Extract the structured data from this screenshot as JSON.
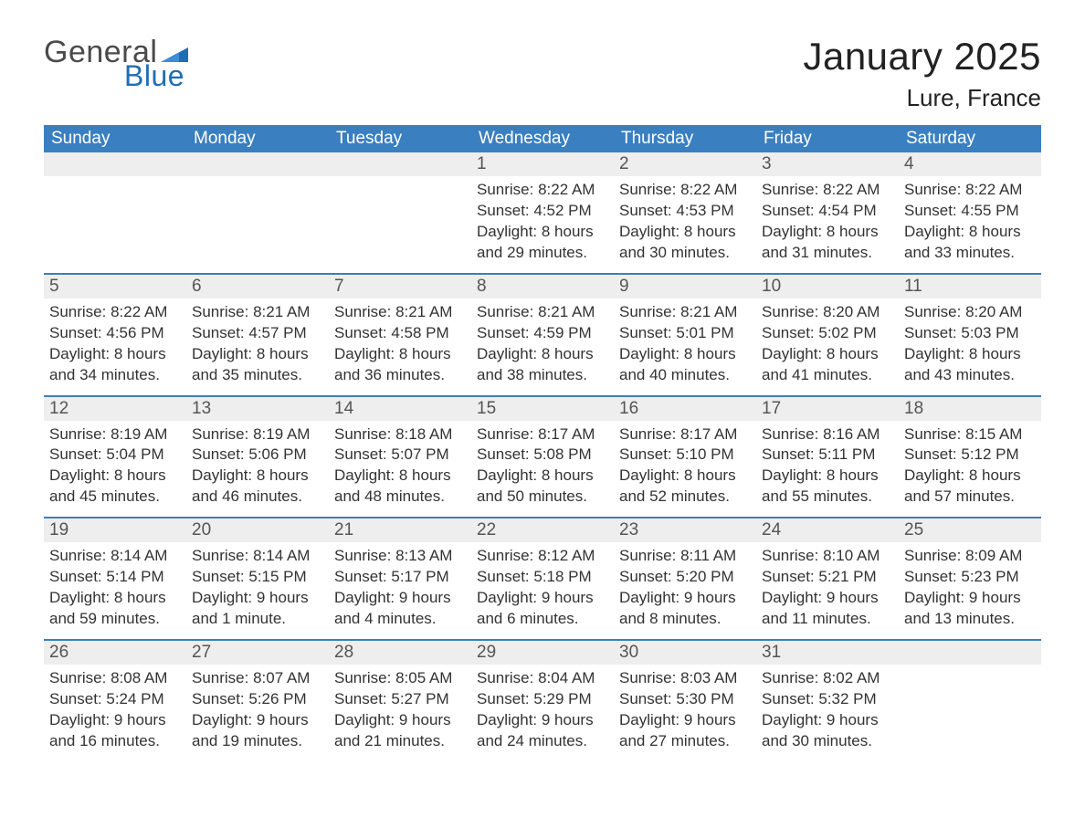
{
  "brand": {
    "word1": "General",
    "word2": "Blue"
  },
  "title": "January 2025",
  "location": "Lure, France",
  "colors": {
    "header_bg": "#3a7fc0",
    "header_text": "#ffffff",
    "daynum_bg": "#eeeeee",
    "daynum_text": "#555555",
    "body_text": "#333333",
    "week_border": "#3a7fc0",
    "brand_gray": "#4a4a4a",
    "brand_blue": "#1f6db5"
  },
  "day_headers": [
    "Sunday",
    "Monday",
    "Tuesday",
    "Wednesday",
    "Thursday",
    "Friday",
    "Saturday"
  ],
  "weeks": [
    [
      {
        "n": "",
        "sunrise": "",
        "sunset": "",
        "daylight": ""
      },
      {
        "n": "",
        "sunrise": "",
        "sunset": "",
        "daylight": ""
      },
      {
        "n": "",
        "sunrise": "",
        "sunset": "",
        "daylight": ""
      },
      {
        "n": "1",
        "sunrise": "Sunrise: 8:22 AM",
        "sunset": "Sunset: 4:52 PM",
        "daylight": "Daylight: 8 hours and 29 minutes."
      },
      {
        "n": "2",
        "sunrise": "Sunrise: 8:22 AM",
        "sunset": "Sunset: 4:53 PM",
        "daylight": "Daylight: 8 hours and 30 minutes."
      },
      {
        "n": "3",
        "sunrise": "Sunrise: 8:22 AM",
        "sunset": "Sunset: 4:54 PM",
        "daylight": "Daylight: 8 hours and 31 minutes."
      },
      {
        "n": "4",
        "sunrise": "Sunrise: 8:22 AM",
        "sunset": "Sunset: 4:55 PM",
        "daylight": "Daylight: 8 hours and 33 minutes."
      }
    ],
    [
      {
        "n": "5",
        "sunrise": "Sunrise: 8:22 AM",
        "sunset": "Sunset: 4:56 PM",
        "daylight": "Daylight: 8 hours and 34 minutes."
      },
      {
        "n": "6",
        "sunrise": "Sunrise: 8:21 AM",
        "sunset": "Sunset: 4:57 PM",
        "daylight": "Daylight: 8 hours and 35 minutes."
      },
      {
        "n": "7",
        "sunrise": "Sunrise: 8:21 AM",
        "sunset": "Sunset: 4:58 PM",
        "daylight": "Daylight: 8 hours and 36 minutes."
      },
      {
        "n": "8",
        "sunrise": "Sunrise: 8:21 AM",
        "sunset": "Sunset: 4:59 PM",
        "daylight": "Daylight: 8 hours and 38 minutes."
      },
      {
        "n": "9",
        "sunrise": "Sunrise: 8:21 AM",
        "sunset": "Sunset: 5:01 PM",
        "daylight": "Daylight: 8 hours and 40 minutes."
      },
      {
        "n": "10",
        "sunrise": "Sunrise: 8:20 AM",
        "sunset": "Sunset: 5:02 PM",
        "daylight": "Daylight: 8 hours and 41 minutes."
      },
      {
        "n": "11",
        "sunrise": "Sunrise: 8:20 AM",
        "sunset": "Sunset: 5:03 PM",
        "daylight": "Daylight: 8 hours and 43 minutes."
      }
    ],
    [
      {
        "n": "12",
        "sunrise": "Sunrise: 8:19 AM",
        "sunset": "Sunset: 5:04 PM",
        "daylight": "Daylight: 8 hours and 45 minutes."
      },
      {
        "n": "13",
        "sunrise": "Sunrise: 8:19 AM",
        "sunset": "Sunset: 5:06 PM",
        "daylight": "Daylight: 8 hours and 46 minutes."
      },
      {
        "n": "14",
        "sunrise": "Sunrise: 8:18 AM",
        "sunset": "Sunset: 5:07 PM",
        "daylight": "Daylight: 8 hours and 48 minutes."
      },
      {
        "n": "15",
        "sunrise": "Sunrise: 8:17 AM",
        "sunset": "Sunset: 5:08 PM",
        "daylight": "Daylight: 8 hours and 50 minutes."
      },
      {
        "n": "16",
        "sunrise": "Sunrise: 8:17 AM",
        "sunset": "Sunset: 5:10 PM",
        "daylight": "Daylight: 8 hours and 52 minutes."
      },
      {
        "n": "17",
        "sunrise": "Sunrise: 8:16 AM",
        "sunset": "Sunset: 5:11 PM",
        "daylight": "Daylight: 8 hours and 55 minutes."
      },
      {
        "n": "18",
        "sunrise": "Sunrise: 8:15 AM",
        "sunset": "Sunset: 5:12 PM",
        "daylight": "Daylight: 8 hours and 57 minutes."
      }
    ],
    [
      {
        "n": "19",
        "sunrise": "Sunrise: 8:14 AM",
        "sunset": "Sunset: 5:14 PM",
        "daylight": "Daylight: 8 hours and 59 minutes."
      },
      {
        "n": "20",
        "sunrise": "Sunrise: 8:14 AM",
        "sunset": "Sunset: 5:15 PM",
        "daylight": "Daylight: 9 hours and 1 minute."
      },
      {
        "n": "21",
        "sunrise": "Sunrise: 8:13 AM",
        "sunset": "Sunset: 5:17 PM",
        "daylight": "Daylight: 9 hours and 4 minutes."
      },
      {
        "n": "22",
        "sunrise": "Sunrise: 8:12 AM",
        "sunset": "Sunset: 5:18 PM",
        "daylight": "Daylight: 9 hours and 6 minutes."
      },
      {
        "n": "23",
        "sunrise": "Sunrise: 8:11 AM",
        "sunset": "Sunset: 5:20 PM",
        "daylight": "Daylight: 9 hours and 8 minutes."
      },
      {
        "n": "24",
        "sunrise": "Sunrise: 8:10 AM",
        "sunset": "Sunset: 5:21 PM",
        "daylight": "Daylight: 9 hours and 11 minutes."
      },
      {
        "n": "25",
        "sunrise": "Sunrise: 8:09 AM",
        "sunset": "Sunset: 5:23 PM",
        "daylight": "Daylight: 9 hours and 13 minutes."
      }
    ],
    [
      {
        "n": "26",
        "sunrise": "Sunrise: 8:08 AM",
        "sunset": "Sunset: 5:24 PM",
        "daylight": "Daylight: 9 hours and 16 minutes."
      },
      {
        "n": "27",
        "sunrise": "Sunrise: 8:07 AM",
        "sunset": "Sunset: 5:26 PM",
        "daylight": "Daylight: 9 hours and 19 minutes."
      },
      {
        "n": "28",
        "sunrise": "Sunrise: 8:05 AM",
        "sunset": "Sunset: 5:27 PM",
        "daylight": "Daylight: 9 hours and 21 minutes."
      },
      {
        "n": "29",
        "sunrise": "Sunrise: 8:04 AM",
        "sunset": "Sunset: 5:29 PM",
        "daylight": "Daylight: 9 hours and 24 minutes."
      },
      {
        "n": "30",
        "sunrise": "Sunrise: 8:03 AM",
        "sunset": "Sunset: 5:30 PM",
        "daylight": "Daylight: 9 hours and 27 minutes."
      },
      {
        "n": "31",
        "sunrise": "Sunrise: 8:02 AM",
        "sunset": "Sunset: 5:32 PM",
        "daylight": "Daylight: 9 hours and 30 minutes."
      },
      {
        "n": "",
        "sunrise": "",
        "sunset": "",
        "daylight": ""
      }
    ]
  ]
}
